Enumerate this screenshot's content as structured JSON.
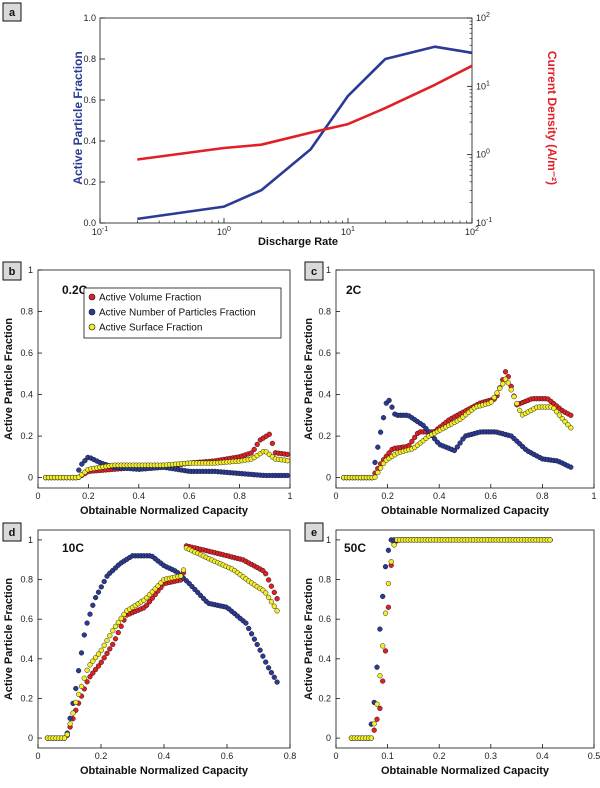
{
  "colors": {
    "blue": "#2b3b95",
    "red": "#e01f26",
    "yellow": "#f2ee2a",
    "black": "#111111"
  },
  "legend": [
    "Active Volume Fraction",
    "Active Number of Particles Fraction",
    "Active Surface Fraction"
  ],
  "chart_data": [
    {
      "panel": "a",
      "type": "line",
      "xlabel": "Discharge Rate",
      "ylabel": "Active Particle Fraction",
      "y2label": "Current Density (A/m⁻²)",
      "xscale": "log",
      "xlim": [
        0.1,
        100
      ],
      "ylim": [
        0,
        1
      ],
      "y2scale": "log",
      "y2lim": [
        0.1,
        100
      ],
      "yticks": [
        "0.0",
        "0.2",
        "0.4",
        "0.6",
        "0.8",
        "1.0"
      ],
      "series": [
        {
          "axis": "left",
          "color": "#2b3b95",
          "x": [
            0.2,
            1,
            2,
            5,
            10,
            20,
            50,
            100
          ],
          "y": [
            0.02,
            0.08,
            0.16,
            0.36,
            0.62,
            0.8,
            0.86,
            0.83
          ]
        },
        {
          "axis": "right",
          "color": "#e01f26",
          "x": [
            0.2,
            1,
            2,
            5,
            10,
            20,
            50,
            100
          ],
          "y": [
            0.85,
            1.25,
            1.4,
            2.1,
            2.8,
            4.8,
            10.5,
            20
          ]
        }
      ]
    },
    {
      "panel": "b",
      "label": "0.2C",
      "type": "scatter",
      "xlabel": "Obtainable Normalized Capacity",
      "ylabel": "Active Particle Fraction",
      "xlim": [
        0,
        1
      ],
      "ylim": [
        -0.05,
        1
      ],
      "xticks": [
        "0",
        "0.2",
        "0.4",
        "0.6",
        "0.8",
        "1"
      ],
      "yticks": [
        "0",
        "0.2",
        "0.4",
        "0.6",
        "0.8",
        "1"
      ],
      "xstart": 0.03,
      "xend": 1.0,
      "xstep": 0.012,
      "series": [
        {
          "name": "Active Volume Fraction",
          "profile": [
            [
              0.03,
              0
            ],
            [
              0.16,
              0
            ],
            [
              0.2,
              0.03
            ],
            [
              0.3,
              0.04
            ],
            [
              0.4,
              0.05
            ],
            [
              0.5,
              0.05
            ],
            [
              0.6,
              0.07
            ],
            [
              0.7,
              0.08
            ],
            [
              0.8,
              0.1
            ],
            [
              0.85,
              0.12
            ],
            [
              0.88,
              0.18
            ],
            [
              0.92,
              0.21
            ],
            [
              0.94,
              0.12
            ],
            [
              1.0,
              0.11
            ]
          ]
        },
        {
          "name": "Active Number of Particles Fraction",
          "profile": [
            [
              0.03,
              0
            ],
            [
              0.15,
              0
            ],
            [
              0.17,
              0.06
            ],
            [
              0.2,
              0.1
            ],
            [
              0.25,
              0.07
            ],
            [
              0.3,
              0.05
            ],
            [
              0.4,
              0.04
            ],
            [
              0.5,
              0.05
            ],
            [
              0.6,
              0.03
            ],
            [
              0.7,
              0.03
            ],
            [
              0.8,
              0.02
            ],
            [
              0.9,
              0.01
            ],
            [
              1.0,
              0.01
            ]
          ]
        },
        {
          "name": "Active Surface Fraction",
          "profile": [
            [
              0.03,
              0
            ],
            [
              0.16,
              0
            ],
            [
              0.2,
              0.04
            ],
            [
              0.3,
              0.06
            ],
            [
              0.4,
              0.06
            ],
            [
              0.5,
              0.06
            ],
            [
              0.6,
              0.07
            ],
            [
              0.7,
              0.07
            ],
            [
              0.8,
              0.08
            ],
            [
              0.85,
              0.09
            ],
            [
              0.9,
              0.13
            ],
            [
              0.94,
              0.09
            ],
            [
              1.0,
              0.08
            ]
          ]
        }
      ]
    },
    {
      "panel": "c",
      "label": "2C",
      "type": "scatter",
      "xlabel": "Obtainable Normalized Capacity",
      "ylabel": "Active Particle Fraction",
      "xlim": [
        0,
        1
      ],
      "ylim": [
        -0.05,
        1
      ],
      "xticks": [
        "0",
        "0.2",
        "0.4",
        "0.6",
        "0.8",
        "1"
      ],
      "yticks": [
        "0",
        "0.2",
        "0.4",
        "0.6",
        "0.8",
        "1"
      ],
      "xstart": 0.03,
      "xend": 0.91,
      "xstep": 0.011,
      "series": [
        {
          "name": "Active Volume Fraction",
          "profile": [
            [
              0.03,
              0
            ],
            [
              0.14,
              0
            ],
            [
              0.18,
              0.08
            ],
            [
              0.22,
              0.14
            ],
            [
              0.28,
              0.15
            ],
            [
              0.32,
              0.22
            ],
            [
              0.38,
              0.22
            ],
            [
              0.44,
              0.28
            ],
            [
              0.5,
              0.32
            ],
            [
              0.56,
              0.36
            ],
            [
              0.62,
              0.38
            ],
            [
              0.66,
              0.52
            ],
            [
              0.7,
              0.35
            ],
            [
              0.76,
              0.38
            ],
            [
              0.82,
              0.38
            ],
            [
              0.88,
              0.32
            ],
            [
              0.91,
              0.3
            ]
          ]
        },
        {
          "name": "Active Number of Particles Fraction",
          "profile": [
            [
              0.03,
              0
            ],
            [
              0.14,
              0
            ],
            [
              0.17,
              0.2
            ],
            [
              0.2,
              0.39
            ],
            [
              0.23,
              0.3
            ],
            [
              0.28,
              0.3
            ],
            [
              0.34,
              0.25
            ],
            [
              0.4,
              0.16
            ],
            [
              0.46,
              0.13
            ],
            [
              0.5,
              0.2
            ],
            [
              0.56,
              0.22
            ],
            [
              0.62,
              0.22
            ],
            [
              0.68,
              0.2
            ],
            [
              0.74,
              0.13
            ],
            [
              0.8,
              0.09
            ],
            [
              0.86,
              0.08
            ],
            [
              0.91,
              0.05
            ]
          ]
        },
        {
          "name": "Active Surface Fraction",
          "profile": [
            [
              0.03,
              0
            ],
            [
              0.15,
              0
            ],
            [
              0.19,
              0.08
            ],
            [
              0.24,
              0.12
            ],
            [
              0.3,
              0.14
            ],
            [
              0.36,
              0.2
            ],
            [
              0.42,
              0.24
            ],
            [
              0.48,
              0.28
            ],
            [
              0.54,
              0.34
            ],
            [
              0.6,
              0.36
            ],
            [
              0.66,
              0.48
            ],
            [
              0.72,
              0.3
            ],
            [
              0.78,
              0.34
            ],
            [
              0.84,
              0.34
            ],
            [
              0.88,
              0.28
            ],
            [
              0.91,
              0.24
            ]
          ]
        }
      ]
    },
    {
      "panel": "d",
      "label": "10C",
      "type": "scatter",
      "xlabel": "Obtainable Normalized Capacity",
      "ylabel": "Active Particle Fraction",
      "xlim": [
        0,
        0.8
      ],
      "ylim": [
        -0.05,
        1.05
      ],
      "xticks": [
        "0",
        "0.2",
        "0.4",
        "0.6",
        "0.8"
      ],
      "yticks": [
        "0",
        "0.2",
        "0.4",
        "0.6",
        "0.8",
        "1"
      ],
      "xstart": 0.03,
      "xend": 0.76,
      "xstep": 0.009,
      "series": [
        {
          "name": "Active Volume Fraction",
          "profile": [
            [
              0.03,
              0
            ],
            [
              0.09,
              0
            ],
            [
              0.12,
              0.14
            ],
            [
              0.16,
              0.3
            ],
            [
              0.2,
              0.38
            ],
            [
              0.24,
              0.48
            ],
            [
              0.28,
              0.62
            ],
            [
              0.34,
              0.66
            ],
            [
              0.4,
              0.78
            ],
            [
              0.46,
              0.8
            ],
            [
              0.47,
              0.97
            ],
            [
              0.55,
              0.94
            ],
            [
              0.65,
              0.9
            ],
            [
              0.72,
              0.84
            ],
            [
              0.76,
              0.7
            ]
          ]
        },
        {
          "name": "Active Number of Particles Fraction",
          "profile": [
            [
              0.03,
              0
            ],
            [
              0.09,
              0
            ],
            [
              0.12,
              0.25
            ],
            [
              0.15,
              0.55
            ],
            [
              0.18,
              0.7
            ],
            [
              0.22,
              0.82
            ],
            [
              0.26,
              0.88
            ],
            [
              0.3,
              0.92
            ],
            [
              0.36,
              0.92
            ],
            [
              0.4,
              0.87
            ],
            [
              0.44,
              0.84
            ],
            [
              0.48,
              0.78
            ],
            [
              0.54,
              0.68
            ],
            [
              0.6,
              0.66
            ],
            [
              0.66,
              0.58
            ],
            [
              0.7,
              0.46
            ],
            [
              0.73,
              0.36
            ],
            [
              0.76,
              0.28
            ]
          ]
        },
        {
          "name": "Active Surface Fraction",
          "profile": [
            [
              0.03,
              0
            ],
            [
              0.09,
              0
            ],
            [
              0.12,
              0.18
            ],
            [
              0.16,
              0.36
            ],
            [
              0.2,
              0.44
            ],
            [
              0.24,
              0.55
            ],
            [
              0.28,
              0.64
            ],
            [
              0.34,
              0.7
            ],
            [
              0.4,
              0.8
            ],
            [
              0.46,
              0.82
            ],
            [
              0.47,
              0.96
            ],
            [
              0.55,
              0.9
            ],
            [
              0.62,
              0.85
            ],
            [
              0.68,
              0.78
            ],
            [
              0.72,
              0.74
            ],
            [
              0.76,
              0.64
            ]
          ]
        }
      ]
    },
    {
      "panel": "e",
      "label": "50C",
      "type": "scatter",
      "xlabel": "Obtainable Normalized Capacity",
      "ylabel": "Active Particle Fraction",
      "xlim": [
        0,
        0.5
      ],
      "ylim": [
        -0.05,
        1.05
      ],
      "xticks": [
        "0",
        "0.1",
        "0.2",
        "0.3",
        "0.4",
        "0.5"
      ],
      "yticks": [
        "0",
        "0.2",
        "0.4",
        "0.6",
        "0.8",
        "1"
      ],
      "xstart": 0.03,
      "xend": 0.42,
      "xstep": 0.0055,
      "series": [
        {
          "name": "Active Volume Fraction",
          "profile": [
            [
              0.03,
              0
            ],
            [
              0.07,
              0
            ],
            [
              0.085,
              0.15
            ],
            [
              0.095,
              0.4
            ],
            [
              0.1,
              0.6
            ],
            [
              0.105,
              0.8
            ],
            [
              0.11,
              0.98
            ],
            [
              0.12,
              1
            ],
            [
              0.42,
              1
            ]
          ]
        },
        {
          "name": "Active Number of Particles Fraction",
          "profile": [
            [
              0.03,
              0
            ],
            [
              0.065,
              0
            ],
            [
              0.075,
              0.2
            ],
            [
              0.085,
              0.55
            ],
            [
              0.095,
              0.85
            ],
            [
              0.105,
              1
            ],
            [
              0.42,
              1
            ]
          ]
        },
        {
          "name": "Active Surface Fraction",
          "profile": [
            [
              0.03,
              0
            ],
            [
              0.07,
              0
            ],
            [
              0.08,
              0.18
            ],
            [
              0.09,
              0.45
            ],
            [
              0.1,
              0.75
            ],
            [
              0.11,
              0.95
            ],
            [
              0.115,
              1
            ],
            [
              0.42,
              1
            ]
          ]
        }
      ]
    }
  ]
}
